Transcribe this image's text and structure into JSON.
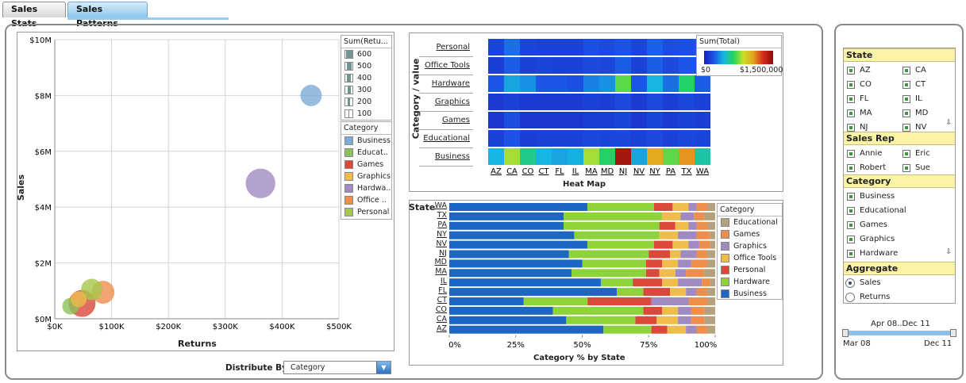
{
  "tabs": [
    {
      "label": "Sales Stats",
      "active": false
    },
    {
      "label": "Sales Patterns",
      "active": true
    }
  ],
  "bubble": {
    "chart_data": {
      "type": "scatter",
      "xlabel": "Returns",
      "ylabel": "Sales",
      "x_ticks": [
        "$0K",
        "$100K",
        "$200K",
        "$300K",
        "$400K",
        "$500K"
      ],
      "y_ticks": [
        "$10M",
        "$8M",
        "$6M",
        "$4M",
        "$2M",
        "$0M"
      ],
      "xlim": [
        0,
        500000
      ],
      "ylim": [
        0,
        10000000
      ],
      "points": [
        {
          "category": "Business",
          "x": 451000,
          "y": 8000000,
          "size": 250
        },
        {
          "category": "Hardware",
          "x": 362000,
          "y": 4850000,
          "size": 600
        },
        {
          "category": "Games",
          "x": 48000,
          "y": 550000,
          "size": 470
        },
        {
          "category": "Office Tools",
          "x": 85000,
          "y": 950000,
          "size": 300
        },
        {
          "category": "Personal",
          "x": 65000,
          "y": 1050000,
          "size": 250
        },
        {
          "category": "Educational",
          "x": 28000,
          "y": 450000,
          "size": 120
        },
        {
          "category": "Graphics",
          "x": 42000,
          "y": 700000,
          "size": 100
        }
      ]
    },
    "size_legend": {
      "title": "Sum(Retu...",
      "items": [
        "600",
        "500",
        "400",
        "300",
        "200",
        "100"
      ]
    },
    "category_legend": {
      "title": "Category",
      "items": [
        {
          "label": "Business",
          "color": "#7eaad8"
        },
        {
          "label": "Educat..",
          "color": "#8cc25a"
        },
        {
          "label": "Games",
          "color": "#d9483b"
        },
        {
          "label": "Graphics",
          "color": "#eebd4d"
        },
        {
          "label": "Hardwa..",
          "color": "#a08ac2"
        },
        {
          "label": "Office ..",
          "color": "#ee8e4d"
        },
        {
          "label": "Personal",
          "color": "#a6c84a"
        }
      ]
    },
    "distribute_label": "Distribute By",
    "distribute_value": "Category"
  },
  "heatmap": {
    "chart_data": {
      "type": "heatmap",
      "title": "Heat Map",
      "ylabel": "Category / value",
      "rows": [
        "Personal",
        "Office Tools",
        "Hardware",
        "Graphics",
        "Games",
        "Educational",
        "Business"
      ],
      "columns": [
        "AZ",
        "CA",
        "CO",
        "CT",
        "FL",
        "IL",
        "MA",
        "MD",
        "NJ",
        "NV",
        "NY",
        "PA",
        "TX",
        "WA"
      ],
      "values": [
        [
          120000,
          250000,
          120000,
          110000,
          110000,
          110000,
          160000,
          140000,
          170000,
          120000,
          210000,
          150000,
          160000,
          170000
        ],
        [
          100000,
          200000,
          110000,
          120000,
          110000,
          110000,
          140000,
          130000,
          200000,
          110000,
          200000,
          140000,
          180000,
          160000
        ],
        [
          180000,
          400000,
          350000,
          180000,
          180000,
          160000,
          300000,
          350000,
          750000,
          180000,
          450000,
          250000,
          650000,
          200000
        ],
        [
          90000,
          110000,
          90000,
          90000,
          90000,
          90000,
          110000,
          100000,
          140000,
          90000,
          140000,
          100000,
          130000,
          110000
        ],
        [
          80000,
          150000,
          80000,
          80000,
          80000,
          80000,
          100000,
          100000,
          120000,
          80000,
          120000,
          90000,
          110000,
          100000
        ],
        [
          110000,
          170000,
          100000,
          110000,
          110000,
          110000,
          130000,
          120000,
          130000,
          110000,
          140000,
          110000,
          130000,
          120000
        ],
        [
          450000,
          850000,
          600000,
          450000,
          400000,
          430000,
          850000,
          650000,
          1450000,
          400000,
          1100000,
          750000,
          1150000,
          550000
        ]
      ]
    },
    "legend": {
      "title": "Sum(Total)",
      "min": "$0",
      "max": "$1,500,000"
    }
  },
  "stacked": {
    "chart_data": {
      "type": "bar",
      "orientation": "horizontal",
      "stacked": "percent",
      "title": "Category % by State",
      "ylabel": "State",
      "x_ticks": [
        "0%",
        "25%",
        "50%",
        "75%",
        "100%"
      ],
      "categories": [
        "WA",
        "TX",
        "PA",
        "NY",
        "NV",
        "NJ",
        "MD",
        "MA",
        "IL",
        "FL",
        "CT",
        "CO",
        "CA",
        "AZ"
      ],
      "series": [
        {
          "name": "Business",
          "color": "#1e66c3",
          "values": [
            52,
            43,
            43,
            47,
            52,
            45,
            50,
            46,
            57,
            63,
            28,
            39,
            44,
            58
          ]
        },
        {
          "name": "Hardware",
          "color": "#8fd33b",
          "values": [
            25,
            37,
            36,
            32,
            25,
            30,
            24,
            28,
            12,
            10,
            24,
            34,
            26,
            18
          ]
        },
        {
          "name": "Personal",
          "color": "#d9483b",
          "values": [
            7,
            0,
            6,
            0,
            7,
            8,
            6,
            5,
            11,
            10,
            24,
            7,
            8,
            6
          ]
        },
        {
          "name": "Office Tools",
          "color": "#eebd4d",
          "values": [
            6,
            7,
            5,
            7,
            6,
            4,
            6,
            6,
            6,
            6,
            0,
            6,
            8,
            7
          ]
        },
        {
          "name": "Graphics",
          "color": "#a08ac2",
          "values": [
            3,
            5,
            3,
            7,
            4,
            6,
            5,
            4,
            9,
            4,
            14,
            5,
            5,
            4
          ]
        },
        {
          "name": "Games",
          "color": "#ee8e4d",
          "values": [
            4,
            4,
            4,
            5,
            4,
            4,
            6,
            7,
            3,
            4,
            7,
            5,
            5,
            4
          ]
        },
        {
          "name": "Educational",
          "color": "#b3a27d",
          "values": [
            3,
            4,
            3,
            2,
            2,
            3,
            3,
            4,
            2,
            3,
            3,
            4,
            4,
            3
          ]
        }
      ]
    },
    "legend": {
      "title": "Category",
      "items": [
        {
          "label": "Educational",
          "color": "#b3a27d"
        },
        {
          "label": "Games",
          "color": "#ee8e4d"
        },
        {
          "label": "Graphics",
          "color": "#a08ac2"
        },
        {
          "label": "Office Tools",
          "color": "#eebd4d"
        },
        {
          "label": "Personal",
          "color": "#d9483b"
        },
        {
          "label": "Hardware",
          "color": "#8fd33b"
        },
        {
          "label": "Business",
          "color": "#1e66c3"
        }
      ]
    }
  },
  "filters": {
    "state": {
      "title": "State",
      "items": [
        "AZ",
        "CA",
        "CO",
        "CT",
        "FL",
        "IL",
        "MA",
        "MD",
        "NJ",
        "NV"
      ]
    },
    "sales_rep": {
      "title": "Sales Rep",
      "items": [
        "Annie",
        "Eric",
        "Robert",
        "Sue"
      ]
    },
    "category": {
      "title": "Category",
      "items": [
        "Business",
        "Educational",
        "Games",
        "Graphics",
        "Hardware"
      ]
    },
    "aggregate": {
      "title": "Aggregate",
      "options": [
        "Sales",
        "Returns"
      ],
      "selected": "Sales"
    }
  },
  "slider": {
    "range_label": "Apr 08..Dec 11",
    "min_label": "Mar 08",
    "max_label": "Dec 11"
  }
}
